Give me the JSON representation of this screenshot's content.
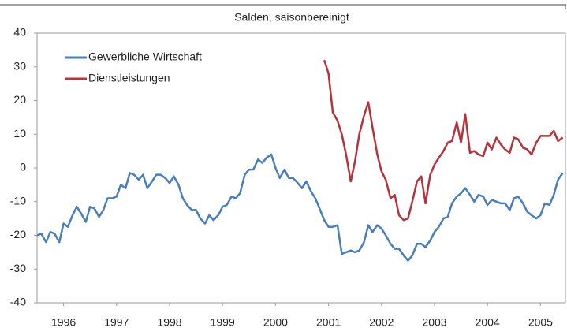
{
  "chart_data": {
    "type": "line",
    "subtitle": "Salden, saisonbereinigt",
    "x": [
      1996,
      1996.08,
      1996.17,
      1996.25,
      1996.33,
      1996.42,
      1996.5,
      1996.58,
      1996.67,
      1996.75,
      1996.83,
      1996.92,
      1997,
      1997.08,
      1997.17,
      1997.25,
      1997.33,
      1997.42,
      1997.5,
      1997.58,
      1997.67,
      1997.75,
      1997.83,
      1997.92,
      1998,
      1998.08,
      1998.17,
      1998.25,
      1998.33,
      1998.42,
      1998.5,
      1998.58,
      1998.67,
      1998.75,
      1998.83,
      1998.92,
      1999,
      1999.08,
      1999.17,
      1999.25,
      1999.33,
      1999.42,
      1999.5,
      1999.58,
      1999.67,
      1999.75,
      1999.83,
      1999.92,
      2000,
      2000.08,
      2000.17,
      2000.25,
      2000.33,
      2000.42,
      2000.5,
      2000.58,
      2000.67,
      2000.75,
      2000.83,
      2000.92,
      2001,
      2001.08,
      2001.17,
      2001.25,
      2001.33,
      2001.42,
      2001.5,
      2001.58,
      2001.67,
      2001.75,
      2001.83,
      2001.92,
      2002,
      2002.08,
      2002.17,
      2002.25,
      2002.33,
      2002.42,
      2002.5,
      2002.58,
      2002.67,
      2002.75,
      2002.83,
      2002.92,
      2003,
      2003.08,
      2003.17,
      2003.25,
      2003.33,
      2003.42,
      2003.5,
      2003.58,
      2003.67,
      2003.75,
      2003.83,
      2003.92,
      2004,
      2004.08,
      2004.17,
      2004.25,
      2004.33,
      2004.42,
      2004.5,
      2004.58,
      2004.67,
      2004.75,
      2004.83,
      2004.92,
      2005,
      2005.08,
      2005.17,
      2005.25,
      2005.33,
      2005.42,
      2005.5,
      2005.58,
      2005.67,
      2005.75,
      2005.83,
      2005.92
    ],
    "series": [
      {
        "name": "Gewerbliche Wirtschaft",
        "color": "#4a7ebb",
        "values": [
          -20,
          -19.5,
          -22,
          -19,
          -19.5,
          -22,
          -16.5,
          -17.5,
          -14,
          -11.5,
          -13.5,
          -16,
          -11.5,
          -12,
          -14.5,
          -12.5,
          -9,
          -9,
          -8.5,
          -5,
          -6,
          -1.5,
          -2,
          -3.5,
          -2,
          -6,
          -4,
          -2,
          -2,
          -3,
          -4.5,
          -2.5,
          -5,
          -9,
          -11,
          -12.5,
          -12.5,
          -15,
          -16.5,
          -14,
          -15.5,
          -14,
          -11.5,
          -11,
          -8.5,
          -9,
          -7.5,
          -2,
          -0.5,
          -0.5,
          2.5,
          1.5,
          3,
          4,
          0,
          -3,
          -0.5,
          -3,
          -3,
          -4.5,
          -6,
          -4,
          -7,
          -9,
          -12,
          -15.5,
          -17.5,
          -17.5,
          -17,
          -25.5,
          -25,
          -24.5,
          -25,
          -24.5,
          -22,
          -17,
          -19,
          -17,
          -18,
          -20,
          -22.5,
          -24,
          -24,
          -26,
          -27.5,
          -26,
          -22.5,
          -22.5,
          -23.5,
          -21.5,
          -19,
          -17.5,
          -15,
          -14.5,
          -10.5,
          -8.5,
          -7.5,
          -6,
          -8,
          -10,
          -8,
          -8.5,
          -11,
          -9.5,
          -10,
          -10.5,
          -10.5,
          -12.5,
          -9,
          -8.5,
          -10.5,
          -13,
          -14,
          -15,
          -14,
          -10.5,
          -11,
          -8,
          -3.5,
          -1.5
        ]
      },
      {
        "name": "Dienstleistungen",
        "color": "#b5333c",
        "values": [
          null,
          null,
          null,
          null,
          null,
          null,
          null,
          null,
          null,
          null,
          null,
          null,
          null,
          null,
          null,
          null,
          null,
          null,
          null,
          null,
          null,
          null,
          null,
          null,
          null,
          null,
          null,
          null,
          null,
          null,
          null,
          null,
          null,
          null,
          null,
          null,
          null,
          null,
          null,
          null,
          null,
          null,
          null,
          null,
          null,
          null,
          null,
          null,
          null,
          null,
          null,
          null,
          null,
          null,
          null,
          null,
          null,
          null,
          null,
          null,
          null,
          null,
          null,
          null,
          null,
          32,
          28,
          16.5,
          14,
          10,
          4,
          -4,
          2,
          10,
          15.5,
          19.5,
          12,
          4,
          -1,
          -3.5,
          -9,
          -8,
          -14,
          -15.5,
          -15,
          -10,
          -4,
          -2.5,
          -10.5,
          -2,
          1,
          3,
          5,
          7.5,
          8,
          13.5,
          7.5,
          16,
          4.5,
          5,
          4,
          3.5,
          7.5,
          5.5,
          9,
          7,
          5.5,
          4.5,
          9,
          8.5,
          6,
          5.5,
          4,
          7.5,
          9.5,
          9.5,
          9.5,
          11,
          8,
          9
        ]
      }
    ],
    "xlim": [
      1996,
      2006
    ],
    "xticks": [
      {
        "value": 1996.5,
        "label": "1996"
      },
      {
        "value": 1997.5,
        "label": "1997"
      },
      {
        "value": 1998.5,
        "label": "1998"
      },
      {
        "value": 1999.5,
        "label": "1999"
      },
      {
        "value": 2000.5,
        "label": "2000"
      },
      {
        "value": 2001.5,
        "label": "2001"
      },
      {
        "value": 2002.5,
        "label": "2002"
      },
      {
        "value": 2003.5,
        "label": "2003"
      },
      {
        "value": 2004.5,
        "label": "2004"
      },
      {
        "value": 2005.5,
        "label": "2005"
      }
    ],
    "ylim": [
      -40,
      40
    ],
    "yticks": [
      -40,
      -30,
      -20,
      -10,
      0,
      10,
      20,
      30,
      40
    ],
    "legend": "upper left"
  }
}
